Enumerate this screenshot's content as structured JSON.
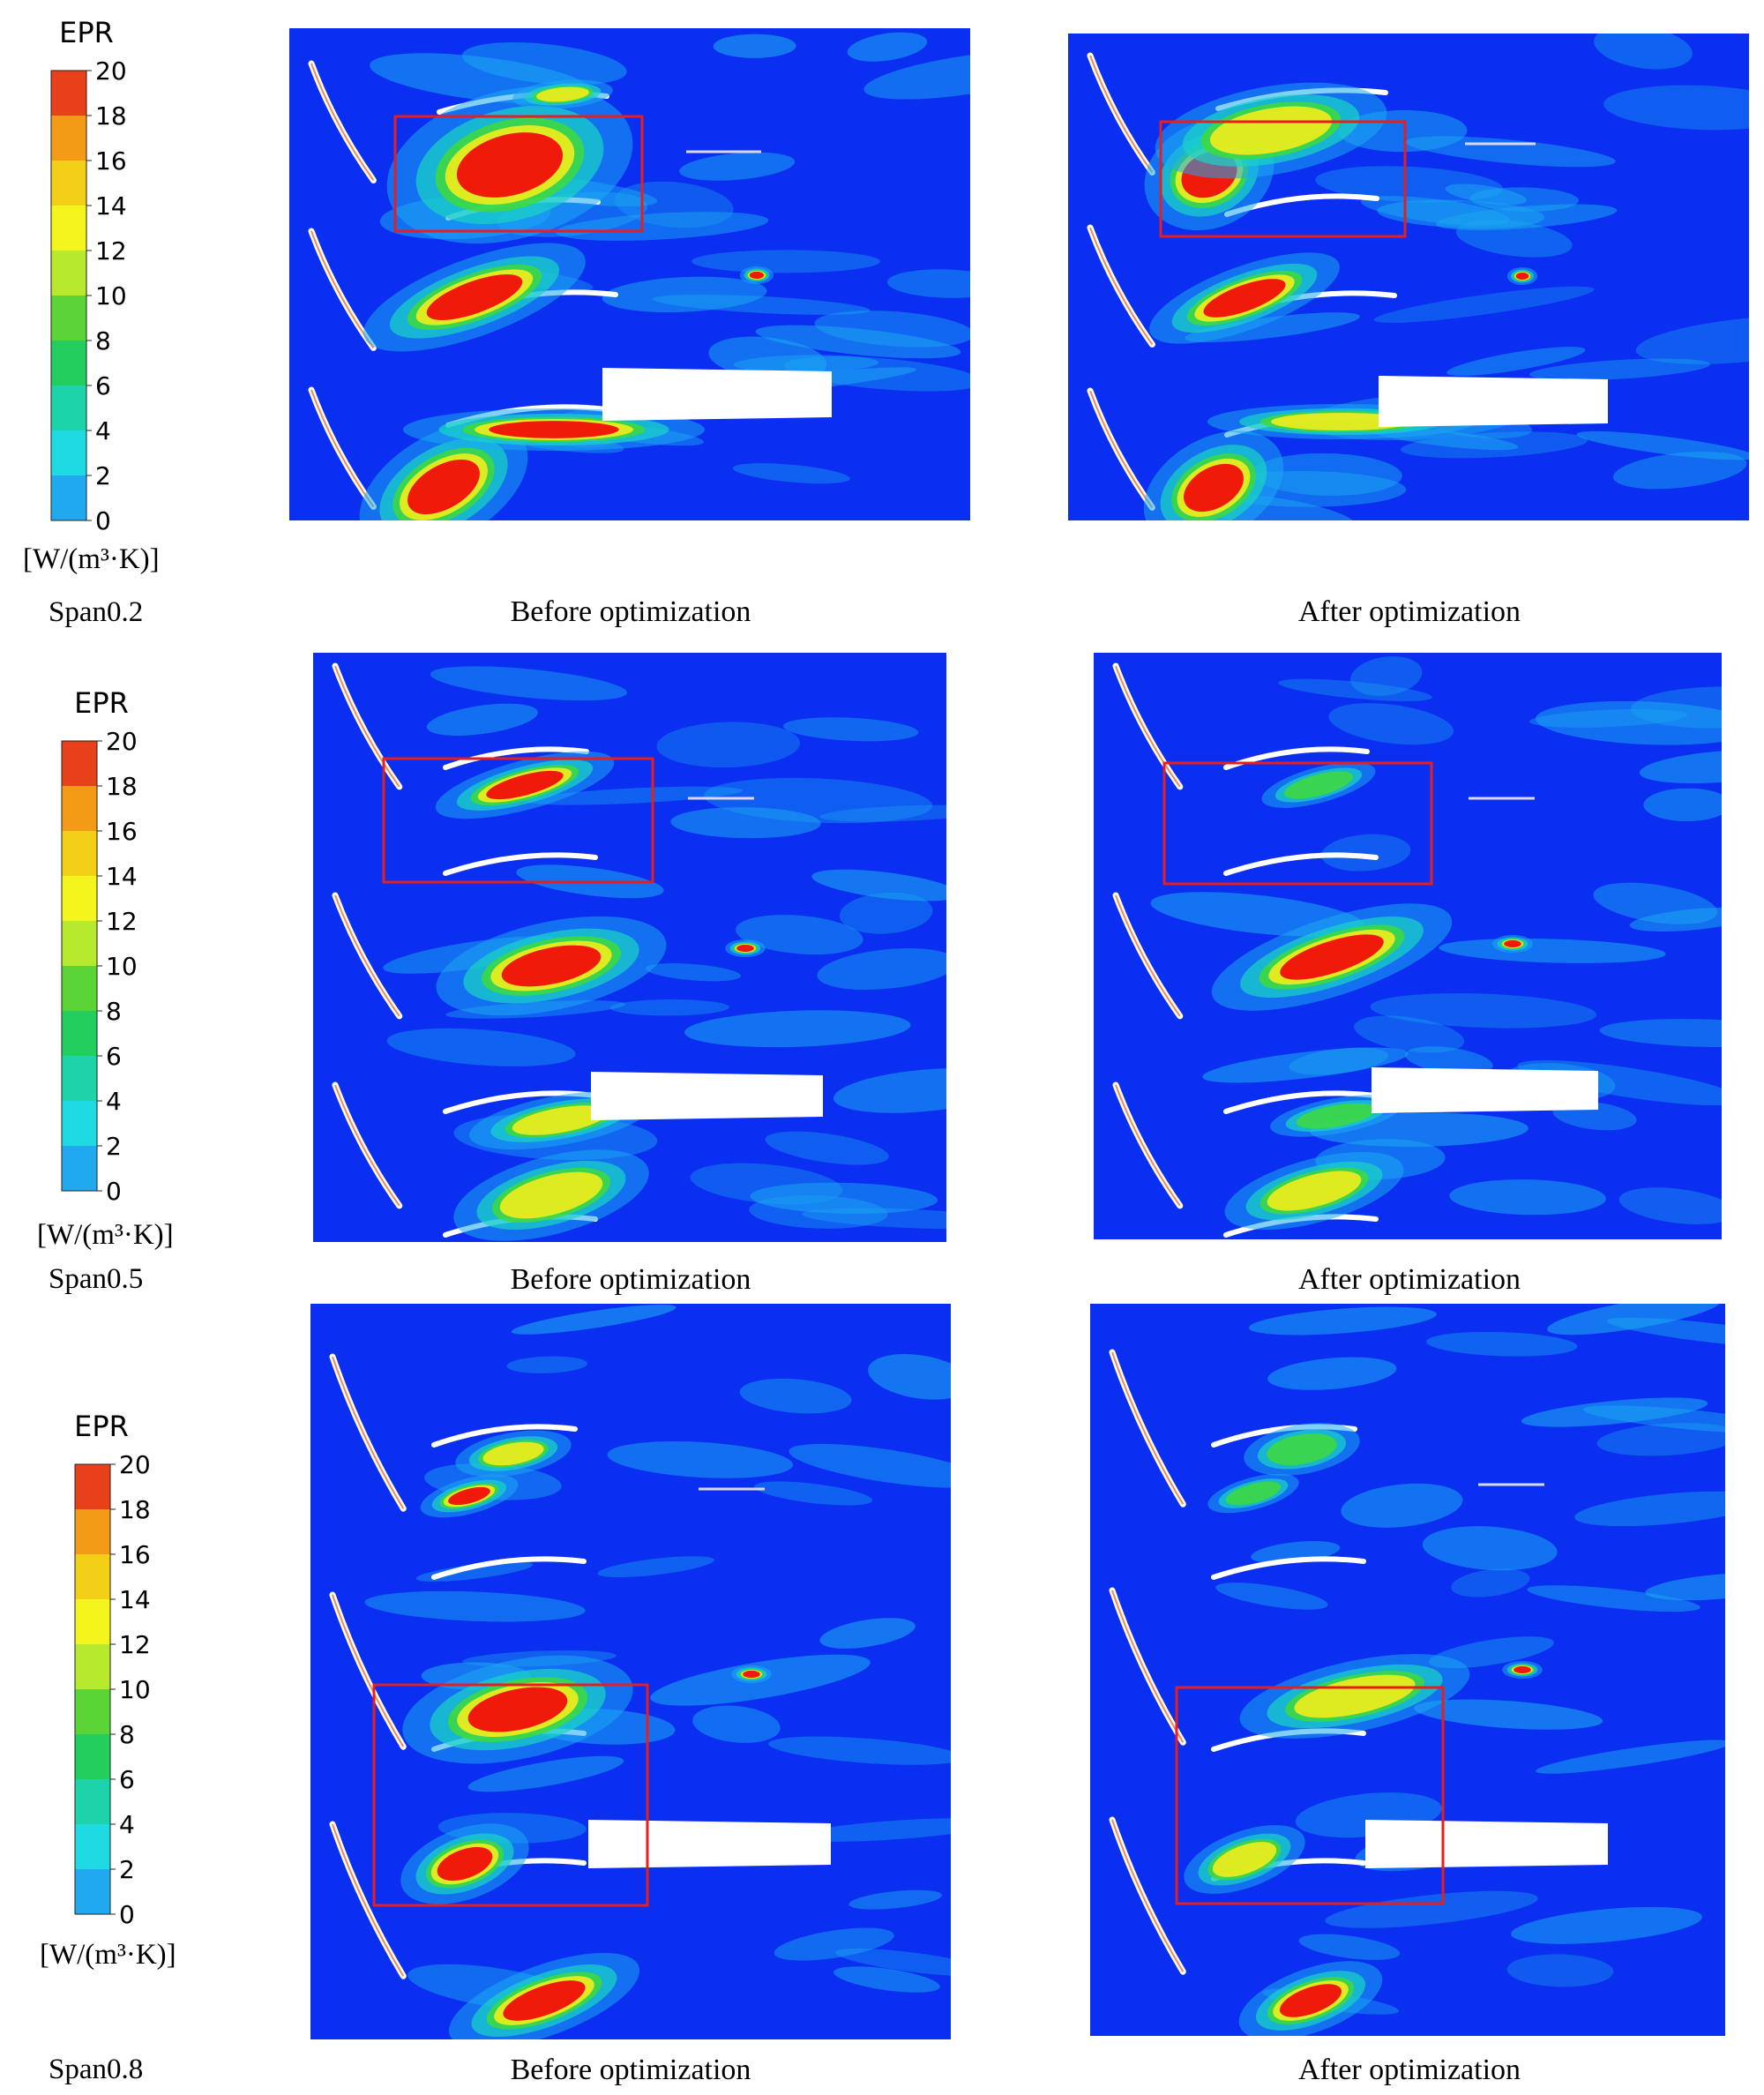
{
  "legend": {
    "title": "EPR",
    "ticks": [
      "20",
      "18",
      "16",
      "14",
      "12",
      "10",
      "8",
      "6",
      "4",
      "2",
      "0"
    ],
    "unit": "[W/(m³·K)]",
    "colors": [
      "#e8401b",
      "#f39a16",
      "#f3cf18",
      "#f4f51d",
      "#b7ea2c",
      "#5bd536",
      "#22cf5e",
      "#1dd3a9",
      "#1fd9e3",
      "#21a9f0",
      "#0a4ef5"
    ]
  },
  "rows": [
    {
      "span": "Span0.2",
      "before": "Before optimization",
      "after": "After optimization"
    },
    {
      "span": "Span0.5",
      "before": "Before optimization",
      "after": "After optimization"
    },
    {
      "span": "Span0.8",
      "before": "Before optimization",
      "after": "After optimization"
    }
  ],
  "colors": {
    "field": "#0a2ff0",
    "highlight_box": "#e51e1e"
  }
}
